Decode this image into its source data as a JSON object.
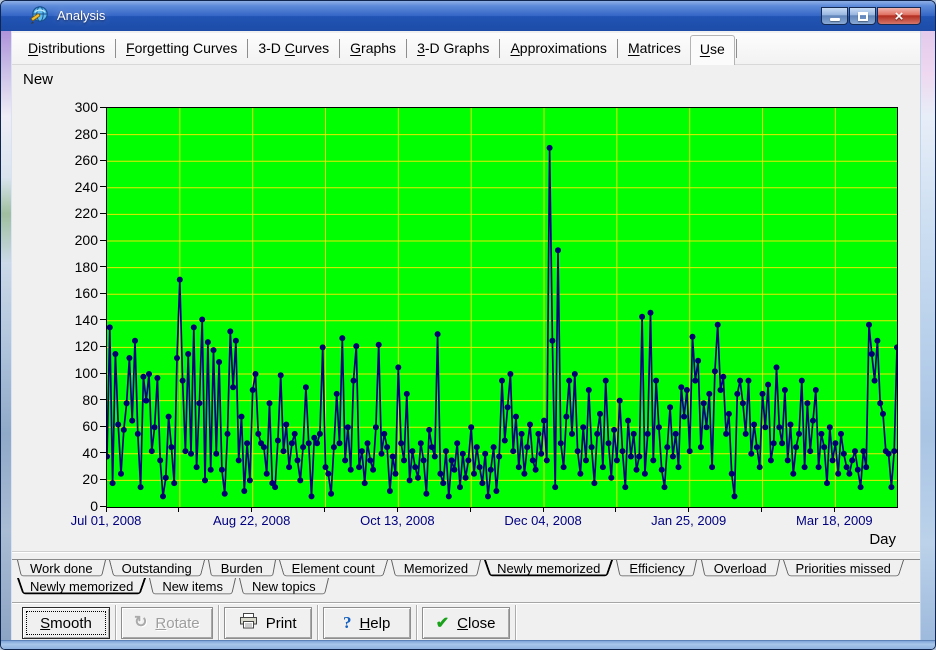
{
  "window": {
    "title": "Analysis",
    "icon": "globe-pencil-icon",
    "controls": [
      {
        "name": "minimize"
      },
      {
        "name": "maximize"
      },
      {
        "name": "close"
      }
    ]
  },
  "top_tabs": {
    "items": [
      {
        "label": "Distributions",
        "accel": "D",
        "selected": false
      },
      {
        "label": "Forgetting Curves",
        "accel": "F",
        "selected": false
      },
      {
        "label": "3-D Curves",
        "accel": "C",
        "selected": false
      },
      {
        "label": "Graphs",
        "accel": "G",
        "selected": false
      },
      {
        "label": "3-D Graphs",
        "accel": "3",
        "selected": false
      },
      {
        "label": "Approximations",
        "accel": "A",
        "selected": false
      },
      {
        "label": "Matrices",
        "accel": "M",
        "selected": false
      },
      {
        "label": "Use",
        "accel": "U",
        "selected": true
      }
    ]
  },
  "bottom_tabs": {
    "row1": [
      {
        "label": "Work done",
        "selected": false
      },
      {
        "label": "Outstanding",
        "selected": false
      },
      {
        "label": "Burden",
        "selected": false
      },
      {
        "label": "Element count",
        "selected": false
      },
      {
        "label": "Memorized",
        "selected": false
      },
      {
        "label": "Newly memorized",
        "selected": true
      },
      {
        "label": "Efficiency",
        "selected": false
      },
      {
        "label": "Overload",
        "selected": false
      },
      {
        "label": "Priorities missed",
        "selected": false
      }
    ],
    "row2": [
      {
        "label": "Newly memorized",
        "selected": true
      },
      {
        "label": "New items",
        "selected": false
      },
      {
        "label": "New topics",
        "selected": false
      }
    ]
  },
  "toolbar": {
    "buttons": [
      {
        "label": "Smooth",
        "accel": "S",
        "icon": "",
        "state": "focused"
      },
      {
        "label": "Rotate",
        "accel": "R",
        "icon": "rotate-icon",
        "state": "disabled"
      },
      {
        "label": "Print",
        "accel": "",
        "icon": "print-icon",
        "state": "normal"
      },
      {
        "label": "Help",
        "accel": "H",
        "icon": "help-icon",
        "state": "normal"
      },
      {
        "label": "Close",
        "accel": "C",
        "icon": "close-check-icon",
        "state": "normal"
      }
    ]
  },
  "colors": {
    "titlebar_blue": "#2F62C0",
    "close_button_red": "#B02A1C",
    "plot_background": "#00FF00",
    "grid_yellow": "#E8E800",
    "series_navy": "#000080",
    "x_label_navy": "#000080"
  },
  "chart_data": {
    "type": "line",
    "title": "New",
    "xlabel": "Day",
    "ylabel": "",
    "ylim": [
      0,
      300
    ],
    "y_tick_interval": 20,
    "x_tick_interval_days": 26,
    "x_label_every_n_ticks": 2,
    "x_tick_labels": [
      "Jul 01, 2008",
      "Aug 22, 2008",
      "Oct 13, 2008",
      "Dec 04, 2008",
      "Jan 25, 2009",
      "Mar 18, 2009"
    ],
    "grid": true,
    "legend": "none",
    "series": [
      {
        "name": "Newly memorized",
        "color": "#000080",
        "values": [
          38,
          135,
          18,
          115,
          62,
          25,
          58,
          78,
          112,
          65,
          125,
          55,
          15,
          98,
          80,
          100,
          42,
          60,
          97,
          35,
          8,
          22,
          68,
          45,
          18,
          112,
          171,
          95,
          42,
          115,
          40,
          135,
          30,
          78,
          141,
          20,
          124,
          28,
          118,
          40,
          109,
          28,
          10,
          55,
          132,
          90,
          125,
          35,
          68,
          12,
          48,
          20,
          88,
          100,
          55,
          48,
          45,
          25,
          78,
          18,
          15,
          50,
          99,
          42,
          62,
          30,
          48,
          55,
          35,
          20,
          45,
          90,
          48,
          8,
          52,
          48,
          55,
          120,
          30,
          25,
          10,
          45,
          85,
          48,
          127,
          35,
          60,
          28,
          95,
          121,
          30,
          42,
          18,
          48,
          35,
          28,
          60,
          122,
          40,
          55,
          45,
          12,
          38,
          25,
          105,
          48,
          35,
          85,
          20,
          42,
          30,
          22,
          48,
          35,
          10,
          58,
          45,
          38,
          130,
          25,
          18,
          42,
          8,
          35,
          28,
          48,
          15,
          40,
          22,
          35,
          60,
          25,
          45,
          30,
          18,
          40,
          8,
          28,
          45,
          12,
          38,
          95,
          50,
          75,
          100,
          42,
          68,
          30,
          55,
          25,
          45,
          62,
          35,
          28,
          55,
          40,
          65,
          35,
          270,
          125,
          15,
          193,
          48,
          30,
          68,
          95,
          55,
          100,
          42,
          25,
          60,
          35,
          88,
          45,
          18,
          55,
          70,
          30,
          95,
          48,
          22,
          58,
          35,
          80,
          42,
          15,
          65,
          38,
          55,
          28,
          38,
          143,
          25,
          55,
          146,
          35,
          95,
          60,
          28,
          15,
          45,
          75,
          38,
          55,
          30,
          90,
          68,
          88,
          42,
          128,
          95,
          110,
          45,
          78,
          60,
          85,
          30,
          102,
          137,
          88,
          98,
          55,
          70,
          25,
          8,
          85,
          95,
          78,
          55,
          95,
          40,
          62,
          45,
          30,
          85,
          60,
          92,
          35,
          48,
          105,
          60,
          48,
          88,
          35,
          62,
          25,
          45,
          55,
          95,
          30,
          78,
          42,
          65,
          88,
          30,
          55,
          45,
          18,
          60,
          35,
          48,
          25,
          55,
          40,
          30,
          25,
          35,
          42,
          28,
          15,
          42,
          30,
          137,
          115,
          95,
          125,
          78,
          70,
          42,
          40,
          15,
          42,
          120
        ]
      }
    ]
  }
}
